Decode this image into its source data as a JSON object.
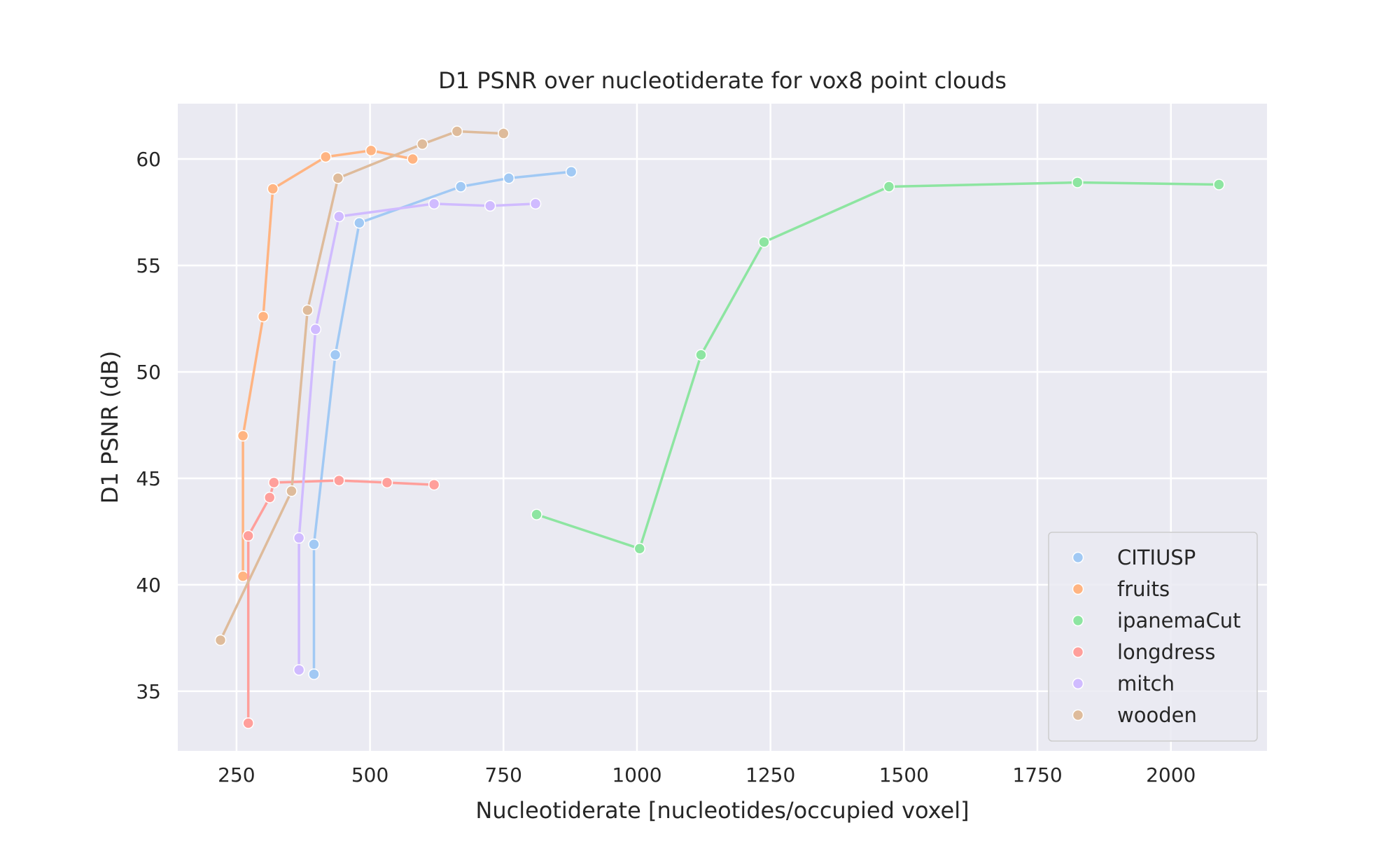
{
  "chart_data": {
    "type": "line",
    "title": "D1 PSNR over nucleotiderate for vox8 point clouds",
    "xlabel": "Nucleotiderate [nucleotides/occupied voxel]",
    "ylabel": "D1 PSNR (dB)",
    "xlim": [
      140,
      2180
    ],
    "ylim": [
      32.2,
      62.6
    ],
    "xticks": [
      250,
      500,
      750,
      1000,
      1250,
      1500,
      1750,
      2000
    ],
    "yticks": [
      35,
      40,
      45,
      50,
      55,
      60
    ],
    "grid": true,
    "legend_position": "lower-right",
    "background": "#eaeaf2",
    "series": [
      {
        "name": "CITIUSP",
        "color": "#a1c9f4",
        "points": [
          [
            395,
            35.8
          ],
          [
            395,
            41.9
          ],
          [
            435,
            50.8
          ],
          [
            480,
            57.0
          ],
          [
            670,
            58.7
          ],
          [
            760,
            59.1
          ],
          [
            877,
            59.4
          ]
        ]
      },
      {
        "name": "fruits",
        "color": "#ffb482",
        "points": [
          [
            262,
            40.4
          ],
          [
            262,
            47.0
          ],
          [
            300,
            52.6
          ],
          [
            318,
            58.6
          ],
          [
            417,
            60.1
          ],
          [
            502,
            60.4
          ],
          [
            580,
            60.0
          ]
        ]
      },
      {
        "name": "ipanemaCut",
        "color": "#8de5a1",
        "points": [
          [
            812,
            43.3
          ],
          [
            1005,
            41.7
          ],
          [
            1120,
            50.8
          ],
          [
            1238,
            56.1
          ],
          [
            1472,
            58.7
          ],
          [
            1825,
            58.9
          ],
          [
            2090,
            58.8
          ]
        ]
      },
      {
        "name": "longdress",
        "color": "#ff9f9b",
        "points": [
          [
            272,
            33.5
          ],
          [
            272,
            42.3
          ],
          [
            312,
            44.1
          ],
          [
            320,
            44.8
          ],
          [
            442,
            44.9
          ],
          [
            532,
            44.8
          ],
          [
            620,
            44.7
          ]
        ]
      },
      {
        "name": "mitch",
        "color": "#d0bbff",
        "points": [
          [
            367,
            36.0
          ],
          [
            367,
            42.2
          ],
          [
            398,
            52.0
          ],
          [
            442,
            57.3
          ],
          [
            620,
            57.9
          ],
          [
            725,
            57.8
          ],
          [
            810,
            57.9
          ]
        ]
      },
      {
        "name": "wooden",
        "color": "#debb9b",
        "points": [
          [
            220,
            37.4
          ],
          [
            353,
            44.4
          ],
          [
            383,
            52.9
          ],
          [
            440,
            59.1
          ],
          [
            598,
            60.7
          ],
          [
            663,
            61.3
          ],
          [
            750,
            61.2
          ]
        ]
      }
    ]
  }
}
